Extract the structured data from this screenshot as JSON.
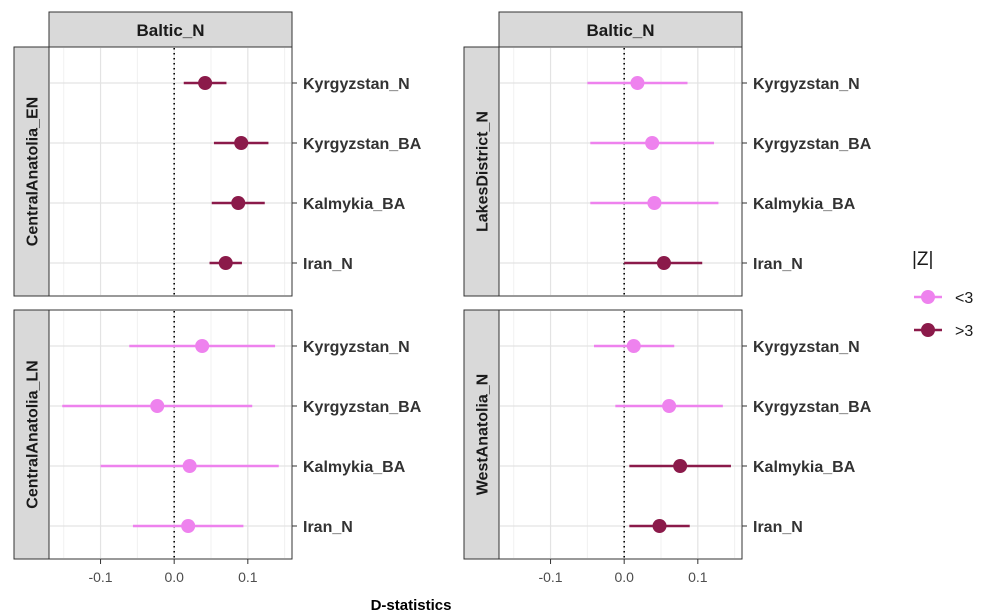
{
  "chart_data": {
    "type": "scatter",
    "subtype": "forest-plot-faceted",
    "xlabel": "D-statistics",
    "ylabel": "",
    "xlim": [
      -0.17,
      0.16
    ],
    "x_ticks": [
      -0.1,
      0.0,
      0.1
    ],
    "x_tick_labels": [
      "-0.1",
      "0.0",
      "0.1"
    ],
    "reference_line_x": 0,
    "grid": true,
    "categories": [
      "Kyrgyzstan_N",
      "Kyrgyzstan_BA",
      "Kalmykia_BA",
      "Iran_N"
    ],
    "legend": {
      "title": "|Z|",
      "position": "right",
      "entries": [
        {
          "label": "<3",
          "color": "#ee82ee"
        },
        {
          "label": ">3",
          "color": "#8b1a4a"
        }
      ]
    },
    "panels": [
      {
        "col_strip": "Baltic_N",
        "row_strip": "CentralAnatolia_EN",
        "points": [
          {
            "category": "Kyrgyzstan_N",
            "estimate": 0.042,
            "lower": 0.013,
            "upper": 0.071,
            "z_group": ">3"
          },
          {
            "category": "Kyrgyzstan_BA",
            "estimate": 0.091,
            "lower": 0.054,
            "upper": 0.128,
            "z_group": ">3"
          },
          {
            "category": "Kalmykia_BA",
            "estimate": 0.087,
            "lower": 0.051,
            "upper": 0.123,
            "z_group": ">3"
          },
          {
            "category": "Iran_N",
            "estimate": 0.07,
            "lower": 0.048,
            "upper": 0.092,
            "z_group": ">3"
          }
        ]
      },
      {
        "col_strip": "Baltic_N",
        "row_strip": "LakesDistrict_N",
        "points": [
          {
            "category": "Kyrgyzstan_N",
            "estimate": 0.018,
            "lower": -0.05,
            "upper": 0.086,
            "z_group": "<3"
          },
          {
            "category": "Kyrgyzstan_BA",
            "estimate": 0.038,
            "lower": -0.046,
            "upper": 0.122,
            "z_group": "<3"
          },
          {
            "category": "Kalmykia_BA",
            "estimate": 0.041,
            "lower": -0.046,
            "upper": 0.128,
            "z_group": "<3"
          },
          {
            "category": "Iran_N",
            "estimate": 0.054,
            "lower": 0.0,
            "upper": 0.106,
            "z_group": ">3"
          }
        ]
      },
      {
        "col_strip": "",
        "row_strip": "CentralAnatolia_LN",
        "points": [
          {
            "category": "Kyrgyzstan_N",
            "estimate": 0.038,
            "lower": -0.061,
            "upper": 0.137,
            "z_group": "<3"
          },
          {
            "category": "Kyrgyzstan_BA",
            "estimate": -0.023,
            "lower": -0.152,
            "upper": 0.106,
            "z_group": "<3"
          },
          {
            "category": "Kalmykia_BA",
            "estimate": 0.021,
            "lower": -0.1,
            "upper": 0.142,
            "z_group": "<3"
          },
          {
            "category": "Iran_N",
            "estimate": 0.019,
            "lower": -0.056,
            "upper": 0.094,
            "z_group": "<3"
          }
        ]
      },
      {
        "col_strip": "",
        "row_strip": "WestAnatolia_N",
        "points": [
          {
            "category": "Kyrgyzstan_N",
            "estimate": 0.013,
            "lower": -0.041,
            "upper": 0.068,
            "z_group": "<3"
          },
          {
            "category": "Kyrgyzstan_BA",
            "estimate": 0.061,
            "lower": -0.012,
            "upper": 0.134,
            "z_group": "<3"
          },
          {
            "category": "Kalmykia_BA",
            "estimate": 0.076,
            "lower": 0.007,
            "upper": 0.145,
            "z_group": ">3"
          },
          {
            "category": "Iran_N",
            "estimate": 0.048,
            "lower": 0.007,
            "upper": 0.089,
            "z_group": ">3"
          }
        ]
      }
    ]
  }
}
